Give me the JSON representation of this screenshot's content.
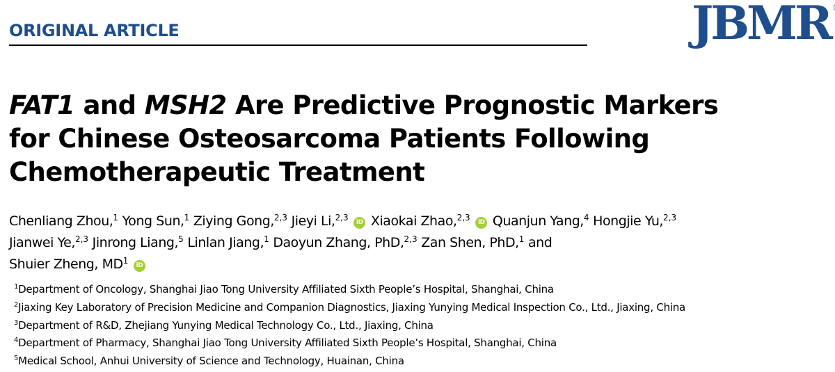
{
  "header": {
    "section_label": "ORIGINAL ARTICLE",
    "journal_logo": "JBMR",
    "registered_mark": "®"
  },
  "colors": {
    "section_label": "#1f4e8c",
    "logo": "#1f4e8c",
    "orcid": "#a6ce39",
    "rule": "#000000"
  },
  "title": {
    "gene1": "FAT1",
    "conj": " and ",
    "gene2": "MSH2",
    "line1_rest": " Are Predictive Prognostic Markers",
    "line2": "for Chinese Osteosarcoma Patients Following",
    "line3": "Chemotherapeutic Treatment"
  },
  "orcid_icon": {
    "name": "orcid-icon",
    "text": "iD"
  },
  "authors": [
    {
      "name": "Chenliang Zhou,",
      "aff": "1"
    },
    {
      "name": "Yong Sun,",
      "aff": "1"
    },
    {
      "name": "Ziying Gong,",
      "aff": "2,3"
    },
    {
      "name": "Jieyi Li,",
      "aff": "2,3"
    },
    {
      "name": "Xiaokai Zhao,",
      "aff": "2,3"
    },
    {
      "name": "Quanjun Yang,",
      "aff": "4"
    },
    {
      "name": "Hongjie Yu,",
      "aff": "2,3"
    },
    {
      "name": "Jianwei Ye,",
      "aff": "2,3"
    },
    {
      "name": "Jinrong Liang,",
      "aff": "5"
    },
    {
      "name": "Linlan Jiang,",
      "aff": "1"
    },
    {
      "name": "Daoyun Zhang, PhD,",
      "aff": "2,3"
    },
    {
      "name": "Zan Shen, PhD,",
      "aff": "1"
    },
    {
      "name": "Shuier Zheng, MD",
      "aff": "1"
    }
  ],
  "author_conj": "and",
  "affiliations": [
    {
      "num": "1",
      "text": "Department of Oncology, Shanghai Jiao Tong University Affiliated Sixth People’s Hospital, Shanghai, China"
    },
    {
      "num": "2",
      "text": "Jiaxing Key Laboratory of Precision Medicine and Companion Diagnostics, Jiaxing Yunying Medical Inspection Co., Ltd., Jiaxing, China"
    },
    {
      "num": "3",
      "text": "Department of R&D, Zhejiang Yunying Medical Technology Co., Ltd., Jiaxing, China"
    },
    {
      "num": "4",
      "text": "Department of Pharmacy, Shanghai Jiao Tong University Affiliated Sixth People’s Hospital, Shanghai, China"
    },
    {
      "num": "5",
      "text": "Medical School, Anhui University of Science and Technology, Huainan, China"
    }
  ]
}
